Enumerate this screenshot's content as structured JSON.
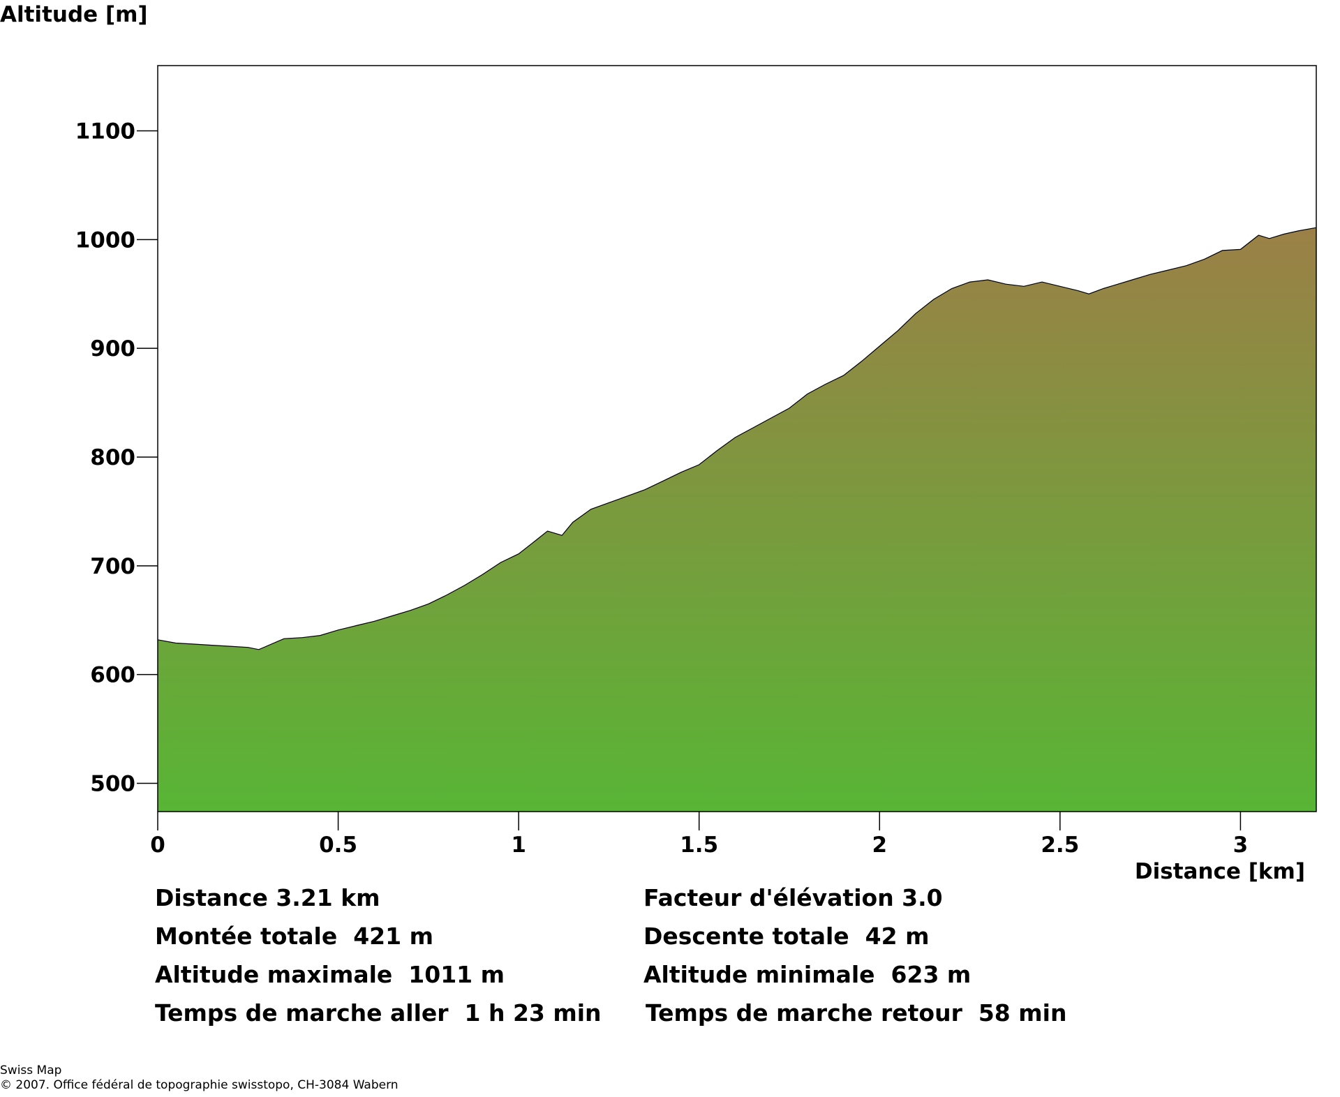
{
  "chart_data": {
    "type": "area",
    "ylabel": "Altitude [m]",
    "xlabel": "Distance [km]",
    "xlim": [
      0,
      3.21
    ],
    "ylim": [
      474,
      1160
    ],
    "x_ticks": [
      0,
      0.5,
      1,
      1.5,
      2,
      2.5,
      3
    ],
    "x_tick_labels": [
      "0",
      "0.5",
      "1",
      "1.5",
      "2",
      "2.5",
      "3"
    ],
    "y_ticks": [
      500,
      600,
      700,
      800,
      900,
      1000,
      1100
    ],
    "y_tick_labels": [
      "500",
      "600",
      "700",
      "800",
      "900",
      "1000",
      "1100"
    ],
    "fill_colors": {
      "low": "#58b535",
      "high": "#9b8046"
    },
    "profile": [
      [
        0,
        632
      ],
      [
        0.05,
        629
      ],
      [
        0.1,
        628
      ],
      [
        0.15,
        627
      ],
      [
        0.2,
        626
      ],
      [
        0.25,
        625
      ],
      [
        0.28,
        623
      ],
      [
        0.35,
        633
      ],
      [
        0.4,
        634
      ],
      [
        0.45,
        636
      ],
      [
        0.5,
        641
      ],
      [
        0.55,
        645
      ],
      [
        0.6,
        649
      ],
      [
        0.65,
        654
      ],
      [
        0.7,
        659
      ],
      [
        0.75,
        665
      ],
      [
        0.8,
        673
      ],
      [
        0.85,
        682
      ],
      [
        0.9,
        692
      ],
      [
        0.95,
        703
      ],
      [
        1.0,
        711
      ],
      [
        1.05,
        724
      ],
      [
        1.08,
        732
      ],
      [
        1.12,
        728
      ],
      [
        1.15,
        740
      ],
      [
        1.2,
        752
      ],
      [
        1.25,
        758
      ],
      [
        1.3,
        764
      ],
      [
        1.35,
        770
      ],
      [
        1.4,
        778
      ],
      [
        1.45,
        786
      ],
      [
        1.5,
        793
      ],
      [
        1.55,
        806
      ],
      [
        1.6,
        818
      ],
      [
        1.65,
        827
      ],
      [
        1.7,
        836
      ],
      [
        1.75,
        845
      ],
      [
        1.8,
        858
      ],
      [
        1.85,
        867
      ],
      [
        1.9,
        875
      ],
      [
        1.95,
        888
      ],
      [
        2.0,
        902
      ],
      [
        2.05,
        916
      ],
      [
        2.1,
        932
      ],
      [
        2.15,
        945
      ],
      [
        2.2,
        955
      ],
      [
        2.25,
        961
      ],
      [
        2.3,
        963
      ],
      [
        2.35,
        959
      ],
      [
        2.4,
        957
      ],
      [
        2.45,
        961
      ],
      [
        2.5,
        957
      ],
      [
        2.55,
        953
      ],
      [
        2.58,
        950
      ],
      [
        2.62,
        955
      ],
      [
        2.65,
        958
      ],
      [
        2.7,
        963
      ],
      [
        2.75,
        968
      ],
      [
        2.8,
        972
      ],
      [
        2.85,
        976
      ],
      [
        2.9,
        982
      ],
      [
        2.95,
        990
      ],
      [
        3.0,
        991
      ],
      [
        3.05,
        1004
      ],
      [
        3.08,
        1001
      ],
      [
        3.12,
        1005
      ],
      [
        3.16,
        1008
      ],
      [
        3.21,
        1011
      ]
    ]
  },
  "stats": {
    "distance": "Distance 3.21 km",
    "elevation_factor": "Facteur d'élévation 3.0",
    "total_ascent": "Montée totale  421 m",
    "total_descent": "Descente totale  42 m",
    "max_altitude": "Altitude maximale  1011 m",
    "min_altitude": "Altitude minimale  623 m",
    "walk_time_out": "Temps de marche aller  1 h 23 min",
    "walk_time_back": "Temps de marche retour  58 min"
  },
  "footer": {
    "line1": "Swiss Map",
    "line2": "© 2007. Office fédéral de topographie swisstopo, CH-3084 Wabern"
  }
}
